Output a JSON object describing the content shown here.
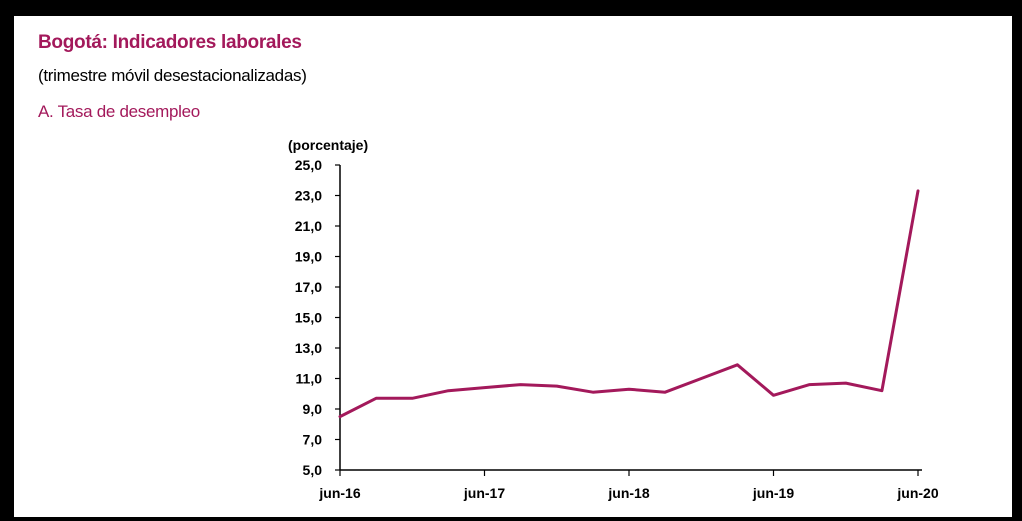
{
  "header": {
    "title": "Bogotá: Indicadores laborales",
    "subtitle": "(trimestre móvil desestacionalizadas)",
    "panel_title": "A. Tasa de desempleo"
  },
  "chart_data": {
    "type": "line",
    "ylabel": "(porcentaje)",
    "xlabel": "",
    "ylim": [
      5.0,
      25.0
    ],
    "yticks": [
      "5,0",
      "7,0",
      "9,0",
      "11,0",
      "13,0",
      "15,0",
      "17,0",
      "19,0",
      "21,0",
      "23,0",
      "25,0"
    ],
    "x_tick_labels": [
      "jun-16",
      "jun-17",
      "jun-18",
      "jun-19",
      "jun-20"
    ],
    "x": [
      "jun-16",
      "sep-16",
      "dic-16",
      "mar-17",
      "jun-17",
      "sep-17",
      "dic-17",
      "mar-18",
      "jun-18",
      "sep-18",
      "dic-18",
      "mar-19",
      "jun-19",
      "sep-19",
      "dic-19",
      "mar-20",
      "jun-20"
    ],
    "series": [
      {
        "color": "#a3195b",
        "values": [
          8.5,
          9.7,
          9.7,
          10.2,
          10.4,
          10.6,
          10.5,
          10.1,
          10.3,
          10.1,
          11.0,
          11.9,
          9.9,
          10.6,
          10.7,
          10.2,
          23.3
        ]
      }
    ],
    "grid": false,
    "legend": "none"
  }
}
